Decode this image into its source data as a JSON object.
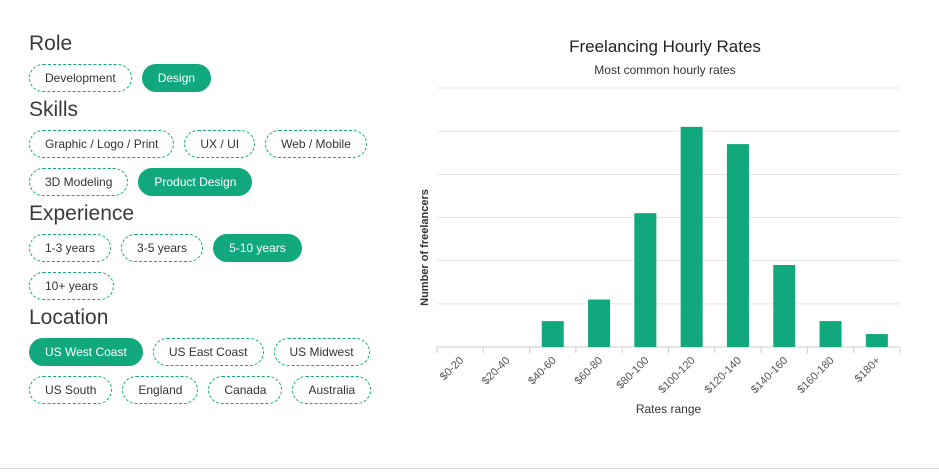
{
  "filters": {
    "role": {
      "title": "Role",
      "chips": [
        {
          "label": "Development",
          "selected": false
        },
        {
          "label": "Design",
          "selected": true
        }
      ]
    },
    "skills": {
      "title": "Skills",
      "chips": [
        {
          "label": "Graphic / Logo / Print",
          "selected": false
        },
        {
          "label": "UX / UI",
          "selected": false
        },
        {
          "label": "Web / Mobile",
          "selected": false
        },
        {
          "label": "3D Modeling",
          "selected": false
        },
        {
          "label": "Product Design",
          "selected": true
        }
      ]
    },
    "experience": {
      "title": "Experience",
      "chips": [
        {
          "label": "1-3 years",
          "selected": false
        },
        {
          "label": "3-5 years",
          "selected": false
        },
        {
          "label": "5-10 years",
          "selected": true
        },
        {
          "label": "10+ years",
          "selected": false
        }
      ]
    },
    "location": {
      "title": "Location",
      "chips": [
        {
          "label": "US West Coast",
          "selected": true
        },
        {
          "label": "US East Coast",
          "selected": false
        },
        {
          "label": "US Midwest",
          "selected": false
        },
        {
          "label": "US South",
          "selected": false
        },
        {
          "label": "England",
          "selected": false
        },
        {
          "label": "Canada",
          "selected": false
        },
        {
          "label": "Australia",
          "selected": false
        }
      ]
    }
  },
  "colors": {
    "accent": "#12a87e",
    "grid": "#e5e5e5",
    "axis": "#cccccc"
  },
  "chart_data": {
    "type": "bar",
    "title": "Freelancing Hourly Rates",
    "subtitle": "Most common hourly rates",
    "xlabel": "Rates range",
    "ylabel": "Number of freelancers",
    "categories": [
      "$0-20",
      "$20-40",
      "$40-60",
      "$60-80",
      "$80-100",
      "$100-120",
      "$120-140",
      "$140-160",
      "$160-180",
      "$180+"
    ],
    "values": [
      0,
      0,
      6,
      11,
      31,
      51,
      47,
      19,
      6,
      3
    ],
    "ylim": [
      0,
      60
    ],
    "grid": true,
    "legend": "none"
  }
}
